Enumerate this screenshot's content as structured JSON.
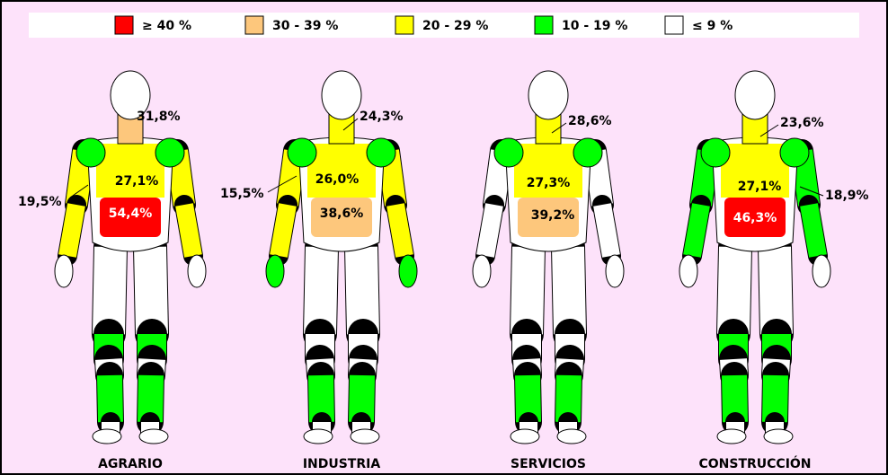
{
  "legend": [
    {
      "label": "≥ 40 %",
      "color": "#ff0000"
    },
    {
      "label": "30 - 39 %",
      "color": "#fdc77c"
    },
    {
      "label": "20 - 29 %",
      "color": "#ffff00"
    },
    {
      "label": "10 - 19 %",
      "color": "#00ff00"
    },
    {
      "label": "≤ 9 %",
      "color": "#ffffff"
    }
  ],
  "figures": [
    {
      "name": "AGRARIO",
      "labels": [
        "31,8%",
        "27,1%",
        "19,5%",
        "54,4%"
      ]
    },
    {
      "name": "INDUSTRIA",
      "labels": [
        "24,3%",
        "26,0%",
        "15,5%",
        "38,6%"
      ]
    },
    {
      "name": "SERVICIOS",
      "labels": [
        "28,6%",
        "27,3%",
        "39,2%"
      ]
    },
    {
      "name": "CONSTRUCCIÓN",
      "labels": [
        "23,6%",
        "27,1%",
        "18,9%",
        "46,3%"
      ]
    }
  ]
}
